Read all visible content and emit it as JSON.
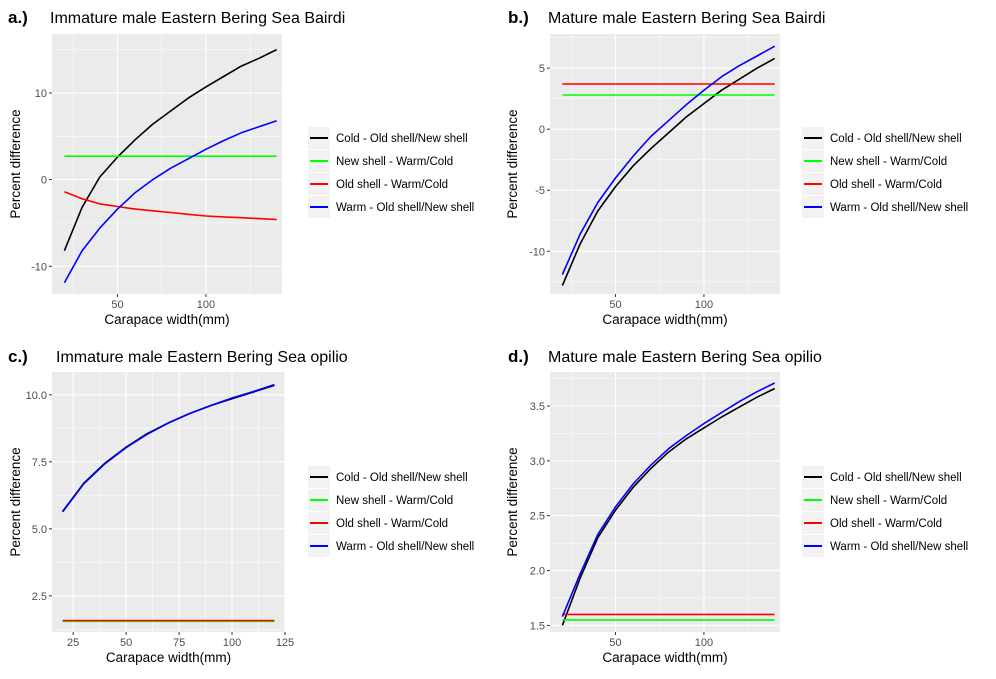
{
  "chart_data": [
    {
      "type": "line",
      "letter": "a.)",
      "title": "Immature male Eastern Bering Sea Bairdi",
      "xlabel": "Carapace width(mm)",
      "ylabel": "Percent difference",
      "xlim": [
        13,
        143
      ],
      "ylim": [
        -13.2,
        16.8
      ],
      "xticks": [
        50,
        100
      ],
      "yticks": [
        -10,
        0,
        10
      ],
      "grid": true,
      "legend": "right",
      "series": [
        {
          "name": "Cold - Old shell/New shell",
          "color": "#000000",
          "x": [
            20,
            30,
            40,
            50,
            60,
            70,
            80,
            90,
            100,
            110,
            120,
            130,
            140
          ],
          "y": [
            -8.2,
            -3.2,
            0.3,
            2.6,
            4.6,
            6.4,
            7.9,
            9.4,
            10.7,
            11.9,
            13.1,
            14.0,
            15.0
          ]
        },
        {
          "name": "New shell - Warm/Cold",
          "color": "#00ff00",
          "x": [
            20,
            140
          ],
          "y": [
            2.7,
            2.7
          ]
        },
        {
          "name": "Old shell - Warm/Cold",
          "color": "#ff0000",
          "x": [
            20,
            30,
            40,
            50,
            60,
            70,
            80,
            90,
            100,
            110,
            120,
            130,
            140
          ],
          "y": [
            -1.4,
            -2.2,
            -2.8,
            -3.1,
            -3.4,
            -3.6,
            -3.8,
            -4.0,
            -4.2,
            -4.3,
            -4.4,
            -4.5,
            -4.6
          ]
        },
        {
          "name": "Warm - Old shell/New shell",
          "color": "#0000ff",
          "x": [
            20,
            30,
            40,
            50,
            60,
            70,
            80,
            90,
            100,
            110,
            120,
            130,
            140
          ],
          "y": [
            -11.9,
            -8.2,
            -5.6,
            -3.4,
            -1.5,
            0.0,
            1.3,
            2.4,
            3.5,
            4.5,
            5.4,
            6.1,
            6.8
          ]
        }
      ]
    },
    {
      "type": "line",
      "letter": "b.)",
      "title": "Mature male Eastern Bering Sea Bairdi",
      "xlabel": "Carapace width(mm)",
      "ylabel": "Percent difference",
      "xlim": [
        13,
        143
      ],
      "ylim": [
        -13.5,
        7.8
      ],
      "xticks": [
        50,
        100
      ],
      "yticks": [
        -10,
        -5,
        0,
        5
      ],
      "grid": true,
      "legend": "right",
      "series": [
        {
          "name": "Cold - Old shell/New shell",
          "color": "#000000",
          "x": [
            20,
            30,
            40,
            50,
            60,
            70,
            80,
            90,
            100,
            110,
            120,
            130,
            140
          ],
          "y": [
            -12.8,
            -9.4,
            -6.7,
            -4.7,
            -3.0,
            -1.6,
            -0.3,
            1.0,
            2.1,
            3.2,
            4.1,
            5.0,
            5.8
          ]
        },
        {
          "name": "New shell - Warm/Cold",
          "color": "#00ff00",
          "x": [
            20,
            140
          ],
          "y": [
            2.8,
            2.8
          ]
        },
        {
          "name": "Old shell - Warm/Cold",
          "color": "#ff0000",
          "x": [
            20,
            140
          ],
          "y": [
            3.7,
            3.7
          ]
        },
        {
          "name": "Warm - Old shell/New shell",
          "color": "#0000ff",
          "x": [
            20,
            30,
            40,
            50,
            60,
            70,
            80,
            90,
            100,
            110,
            120,
            130,
            140
          ],
          "y": [
            -11.9,
            -8.6,
            -6.0,
            -4.0,
            -2.2,
            -0.6,
            0.7,
            2.0,
            3.2,
            4.3,
            5.2,
            6.0,
            6.8
          ]
        }
      ]
    },
    {
      "type": "line",
      "letter": "c.)",
      "title": "Immature male Eastern Bering Sea opilio",
      "xlabel": "Carapace width(mm)",
      "ylabel": "Percent difference",
      "xlim": [
        15,
        125
      ],
      "ylim": [
        1.15,
        10.85
      ],
      "xticks": [
        25,
        50,
        75,
        100,
        125
      ],
      "yticks": [
        2.5,
        5.0,
        7.5,
        10.0
      ],
      "tick_labels_y": [
        "2.5",
        "5.0",
        "7.5",
        "10.0"
      ],
      "grid": true,
      "legend": "right",
      "series": [
        {
          "name": "Cold - Old shell/New shell",
          "color": "#000000",
          "x": [
            20,
            30,
            40,
            50,
            60,
            70,
            80,
            90,
            100,
            110,
            120
          ],
          "y": [
            5.65,
            6.7,
            7.45,
            8.05,
            8.55,
            8.95,
            9.3,
            9.6,
            9.85,
            10.1,
            10.35
          ]
        },
        {
          "name": "New shell - Warm/Cold",
          "color": "#00ff00",
          "x": [
            20,
            120
          ],
          "y": [
            1.55,
            1.55
          ]
        },
        {
          "name": "Old shell - Warm/Cold",
          "color": "#ff0000",
          "x": [
            20,
            120
          ],
          "y": [
            1.58,
            1.58
          ]
        },
        {
          "name": "Warm - Old shell/New shell",
          "color": "#0000ff",
          "x": [
            20,
            30,
            40,
            50,
            60,
            70,
            80,
            90,
            100,
            110,
            120
          ],
          "y": [
            5.63,
            6.68,
            7.43,
            8.03,
            8.53,
            8.95,
            9.3,
            9.6,
            9.88,
            10.12,
            10.38
          ]
        }
      ]
    },
    {
      "type": "line",
      "letter": "d.)",
      "title": "Mature male Eastern Bering Sea opilio",
      "xlabel": "Carapace width(mm)",
      "ylabel": "Percent difference",
      "xlim": [
        13,
        143
      ],
      "ylim": [
        1.44,
        3.81
      ],
      "xticks": [
        50,
        100
      ],
      "yticks": [
        1.5,
        2.0,
        2.5,
        3.0,
        3.5
      ],
      "tick_labels_y": [
        "1.5",
        "2.0",
        "2.5",
        "3.0",
        "3.5"
      ],
      "grid": true,
      "legend": "right",
      "series": [
        {
          "name": "Cold - Old shell/New shell",
          "color": "#000000",
          "x": [
            20,
            30,
            40,
            50,
            60,
            70,
            80,
            90,
            100,
            110,
            120,
            130,
            140
          ],
          "y": [
            1.5,
            1.93,
            2.3,
            2.55,
            2.76,
            2.93,
            3.08,
            3.2,
            3.3,
            3.4,
            3.49,
            3.58,
            3.66
          ]
        },
        {
          "name": "New shell - Warm/Cold",
          "color": "#00ff00",
          "x": [
            20,
            140
          ],
          "y": [
            1.55,
            1.55
          ]
        },
        {
          "name": "Old shell - Warm/Cold",
          "color": "#ff0000",
          "x": [
            20,
            140
          ],
          "y": [
            1.6,
            1.6
          ]
        },
        {
          "name": "Warm - Old shell/New shell",
          "color": "#0000ff",
          "x": [
            20,
            30,
            40,
            50,
            60,
            70,
            80,
            90,
            100,
            110,
            120,
            130,
            140
          ],
          "y": [
            1.58,
            1.97,
            2.33,
            2.58,
            2.79,
            2.96,
            3.11,
            3.23,
            3.34,
            3.44,
            3.54,
            3.63,
            3.71
          ]
        }
      ]
    }
  ]
}
